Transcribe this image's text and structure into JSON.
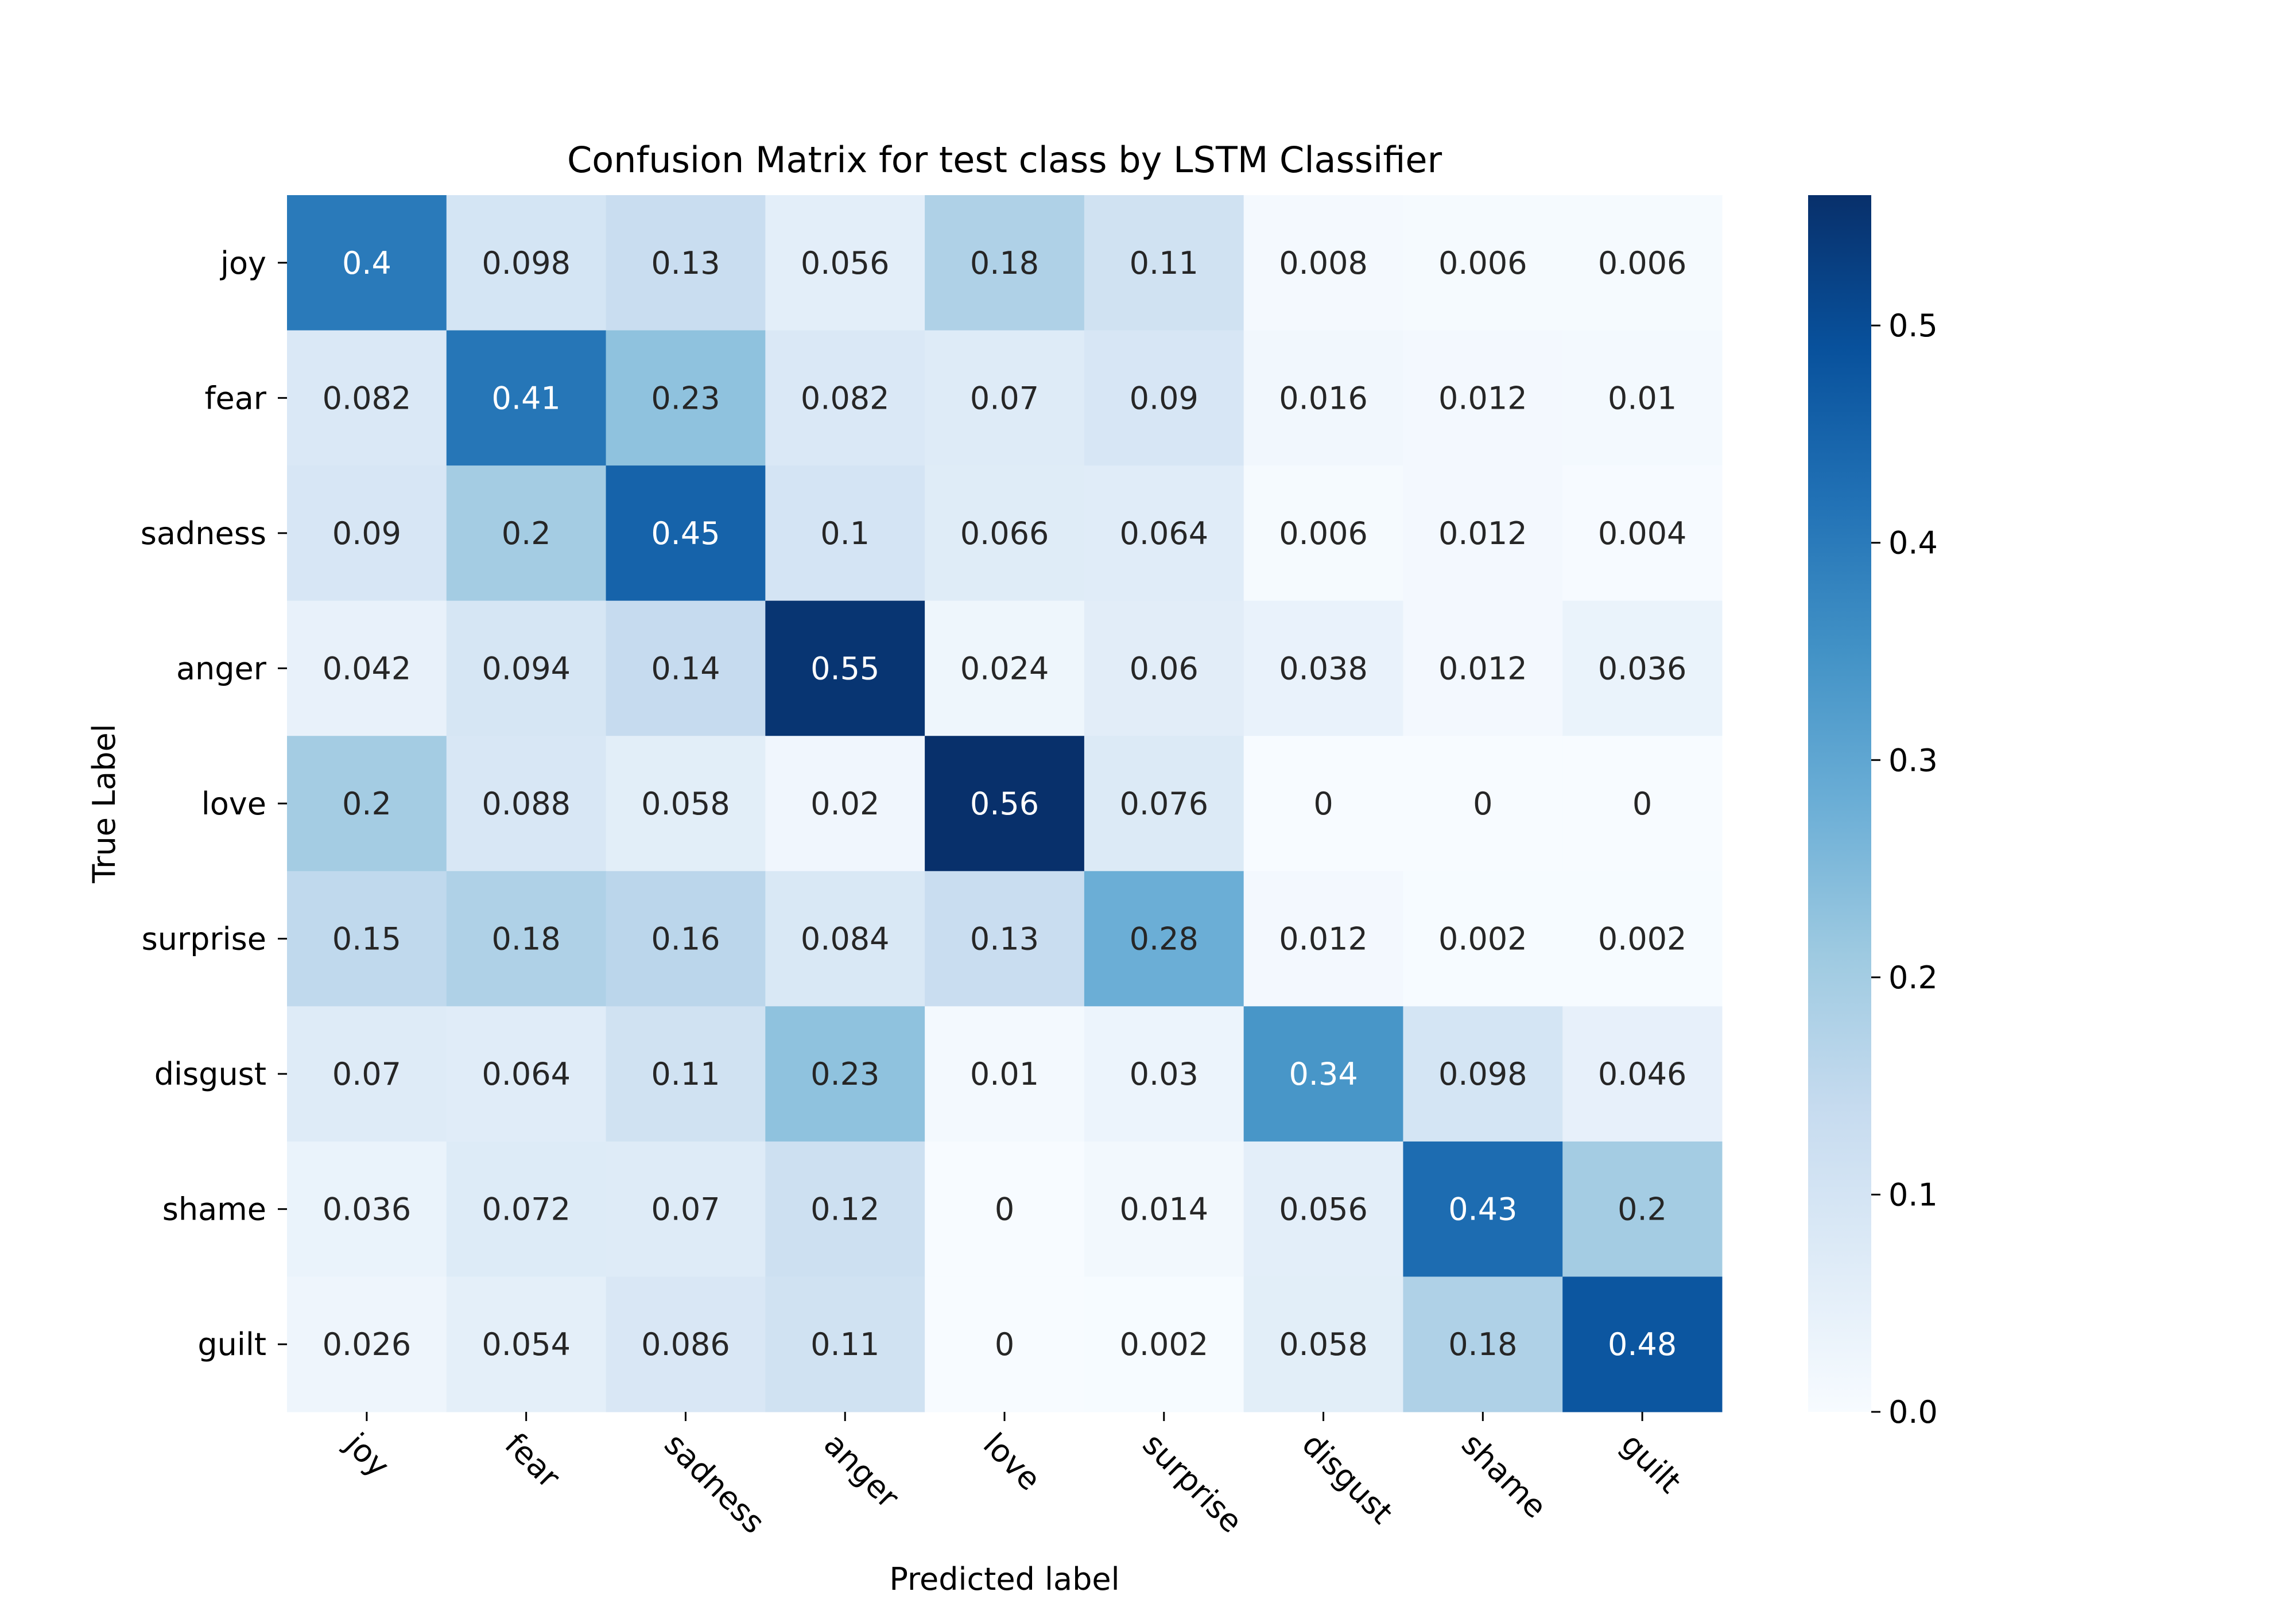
{
  "chart_data": {
    "type": "heatmap",
    "title": "Confusion Matrix for test class by LSTM Classifier",
    "xlabel": "Predicted label",
    "ylabel": "True Label",
    "x_categories": [
      "joy",
      "fear",
      "sadness",
      "anger",
      "love",
      "surprise",
      "disgust",
      "shame",
      "guilt"
    ],
    "y_categories": [
      "joy",
      "fear",
      "sadness",
      "anger",
      "love",
      "surprise",
      "disgust",
      "shame",
      "guilt"
    ],
    "values": [
      [
        0.4,
        0.098,
        0.13,
        0.056,
        0.18,
        0.11,
        0.008,
        0.006,
        0.006
      ],
      [
        0.082,
        0.41,
        0.23,
        0.082,
        0.07,
        0.09,
        0.016,
        0.012,
        0.01
      ],
      [
        0.09,
        0.2,
        0.45,
        0.1,
        0.066,
        0.064,
        0.006,
        0.012,
        0.004
      ],
      [
        0.042,
        0.094,
        0.14,
        0.55,
        0.024,
        0.06,
        0.038,
        0.012,
        0.036
      ],
      [
        0.2,
        0.088,
        0.058,
        0.02,
        0.56,
        0.076,
        0,
        0,
        0
      ],
      [
        0.15,
        0.18,
        0.16,
        0.084,
        0.13,
        0.28,
        0.012,
        0.002,
        0.002
      ],
      [
        0.07,
        0.064,
        0.11,
        0.23,
        0.01,
        0.03,
        0.34,
        0.098,
        0.046
      ],
      [
        0.036,
        0.072,
        0.07,
        0.12,
        0,
        0.014,
        0.056,
        0.43,
        0.2
      ],
      [
        0.026,
        0.054,
        0.086,
        0.11,
        0,
        0.002,
        0.058,
        0.18,
        0.48
      ]
    ],
    "colorbar": {
      "min": 0,
      "max": 0.56,
      "ticks": [
        0.0,
        0.1,
        0.2,
        0.3,
        0.4,
        0.5
      ],
      "tick_labels": [
        "0.0",
        "0.1",
        "0.2",
        "0.3",
        "0.4",
        "0.5"
      ],
      "colormap": "Blues"
    }
  }
}
